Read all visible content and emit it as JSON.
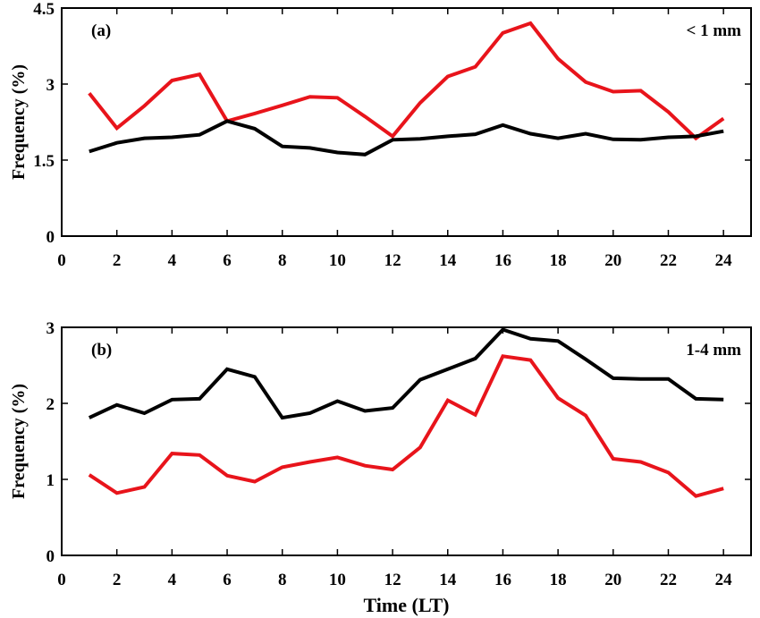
{
  "chart_data": [
    {
      "type": "line",
      "panel_label": "(a)",
      "annotation": "< 1 mm",
      "ylabel": "Frequency (%)",
      "xlabel": "",
      "xlim": [
        0,
        25
      ],
      "ylim": [
        0,
        4.5
      ],
      "xticks": [
        0,
        2,
        4,
        6,
        8,
        10,
        12,
        14,
        16,
        18,
        20,
        22,
        24
      ],
      "yticks": [
        0,
        1.5,
        3,
        4.5
      ],
      "ytick_labels": [
        "0",
        "1.5",
        "3",
        "4.5"
      ],
      "grid": false,
      "x": [
        1,
        2,
        3,
        4,
        5,
        6,
        7,
        8,
        9,
        10,
        11,
        12,
        13,
        14,
        15,
        16,
        17,
        18,
        19,
        20,
        21,
        22,
        23,
        24
      ],
      "series": [
        {
          "color": "#e8141b",
          "values": [
            2.82,
            2.13,
            2.57,
            3.07,
            3.19,
            2.27,
            2.42,
            2.58,
            2.75,
            2.73,
            2.36,
            1.97,
            2.63,
            3.15,
            3.34,
            4.01,
            4.2,
            3.5,
            3.04,
            2.85,
            2.87,
            2.45,
            1.93,
            2.32
          ]
        },
        {
          "color": "#000000",
          "values": [
            1.67,
            1.84,
            1.93,
            1.95,
            2.0,
            2.27,
            2.12,
            1.77,
            1.74,
            1.65,
            1.61,
            1.9,
            1.92,
            1.97,
            2.01,
            2.19,
            2.02,
            1.93,
            2.02,
            1.91,
            1.9,
            1.95,
            1.97,
            2.07
          ]
        }
      ]
    },
    {
      "type": "line",
      "panel_label": "(b)",
      "annotation": "1-4 mm",
      "ylabel": "Frequency (%)",
      "xlabel": "Time (LT)",
      "xlim": [
        0,
        25
      ],
      "ylim": [
        0,
        3
      ],
      "xticks": [
        0,
        2,
        4,
        6,
        8,
        10,
        12,
        14,
        16,
        18,
        20,
        22,
        24
      ],
      "yticks": [
        0,
        1,
        2,
        3
      ],
      "ytick_labels": [
        "0",
        "1",
        "2",
        "3"
      ],
      "grid": false,
      "x": [
        1,
        2,
        3,
        4,
        5,
        6,
        7,
        8,
        9,
        10,
        11,
        12,
        13,
        14,
        15,
        16,
        17,
        18,
        19,
        20,
        21,
        22,
        23,
        24
      ],
      "series": [
        {
          "color": "#e8141b",
          "values": [
            1.06,
            0.82,
            0.9,
            1.34,
            1.32,
            1.05,
            0.97,
            1.16,
            1.23,
            1.29,
            1.18,
            1.13,
            1.42,
            2.04,
            1.85,
            2.62,
            2.57,
            2.07,
            1.84,
            1.27,
            1.23,
            1.09,
            0.78,
            0.88
          ]
        },
        {
          "color": "#000000",
          "values": [
            1.81,
            1.98,
            1.87,
            2.05,
            2.06,
            2.45,
            2.35,
            1.81,
            1.87,
            2.03,
            1.9,
            1.94,
            2.31,
            2.45,
            2.59,
            2.97,
            2.85,
            2.82,
            2.58,
            2.33,
            2.32,
            2.32,
            2.06,
            2.05
          ]
        }
      ]
    }
  ]
}
